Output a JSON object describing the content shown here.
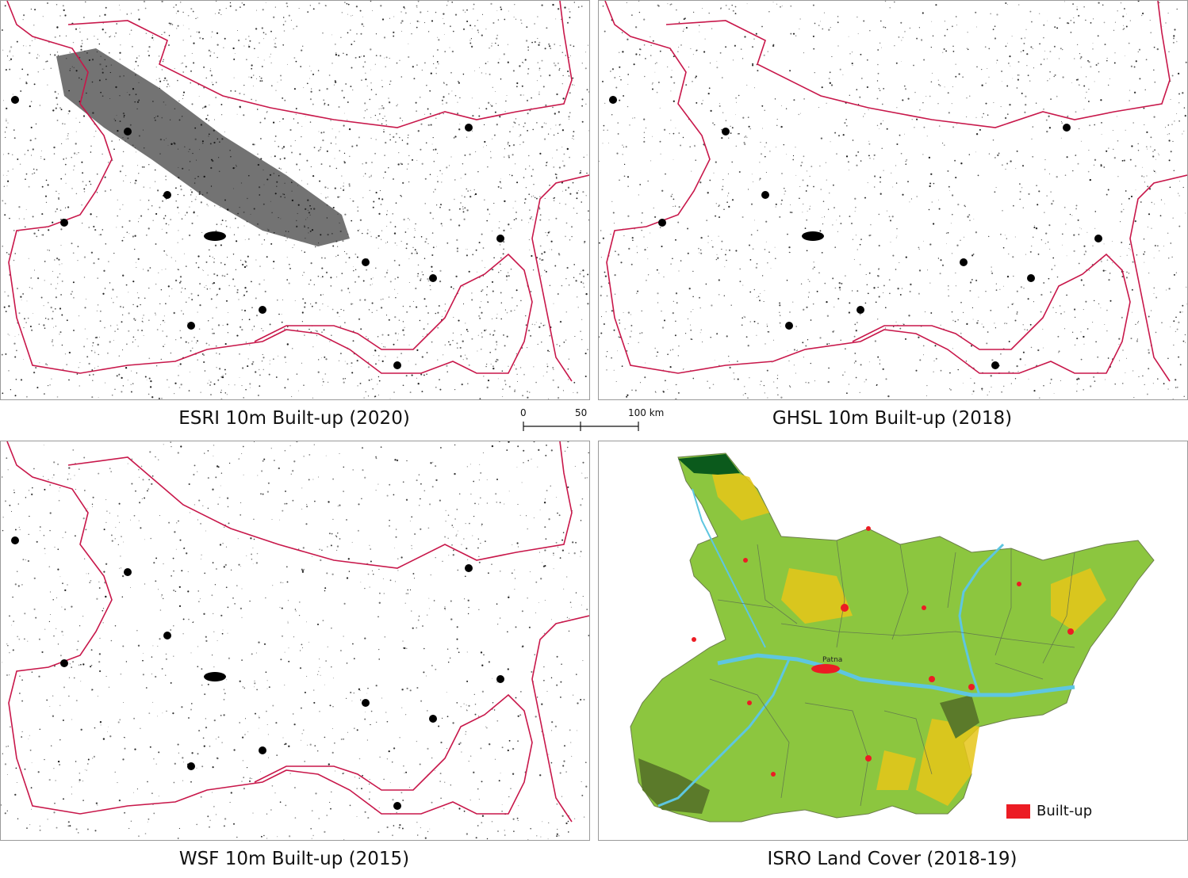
{
  "panels": [
    {
      "id": "esri",
      "caption": "ESRI 10m Built-up (2020)"
    },
    {
      "id": "ghsl",
      "caption": "GHSL 10m Built-up (2018)"
    },
    {
      "id": "wsf",
      "caption": "WSF 10m Built-up (2015)"
    },
    {
      "id": "isro",
      "caption": "ISRO Land Cover (2018-19)"
    }
  ],
  "scale_bar": {
    "ticks": [
      "0",
      "50",
      "100 km"
    ]
  },
  "legend": {
    "label": "Built-up",
    "color": "#ec1c24"
  },
  "map_labels": {
    "patna": "Patna"
  },
  "colors": {
    "boundary": "#c8174a",
    "builtup_dots": "#000000",
    "agriculture": "#8cc63f",
    "fallow": "#e6c619",
    "forest": "#0b5a1c",
    "water": "#5ec6e0",
    "builtup": "#ec1c24"
  }
}
